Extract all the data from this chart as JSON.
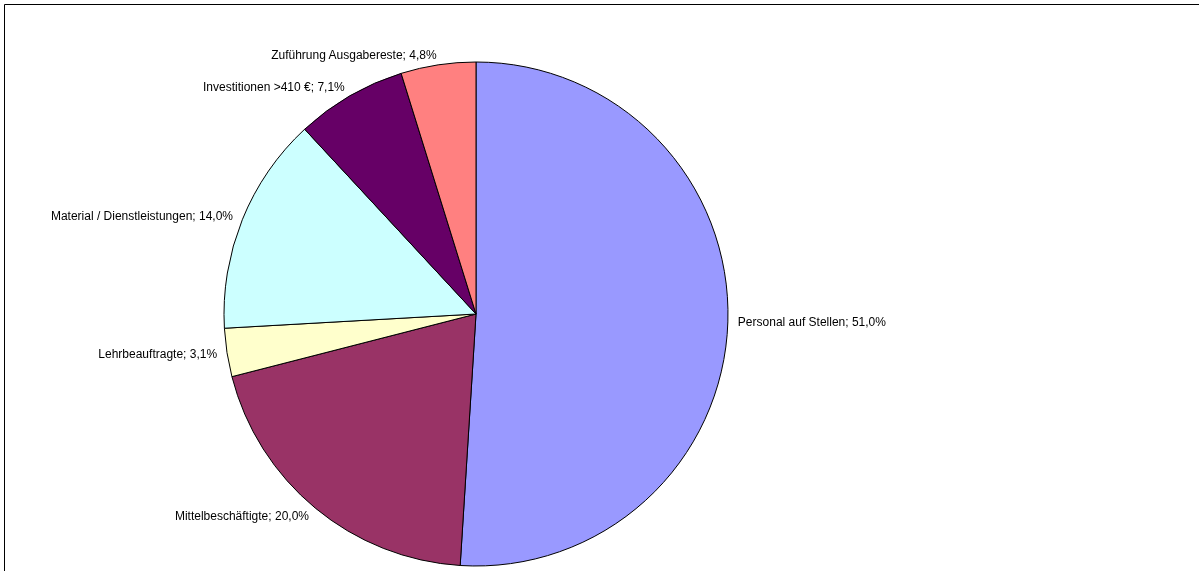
{
  "chart_data": {
    "type": "pie",
    "categories": [
      "Personal auf Stellen",
      "Mittelbeschäftigte",
      "Lehrbeauftragte",
      "Material / Dienstleistungen",
      "Investitionen >410 €",
      "Zuführung Ausgabereste"
    ],
    "values": [
      51.0,
      20.0,
      3.1,
      14.0,
      7.1,
      4.8
    ],
    "value_labels": [
      "51,0%",
      "20,0%",
      "3,1%",
      "14,0%",
      "7,1%",
      "4,8%"
    ],
    "colors": [
      "#9999ff",
      "#993366",
      "#ffffcc",
      "#ccffff",
      "#660066",
      "#ff8080"
    ]
  }
}
